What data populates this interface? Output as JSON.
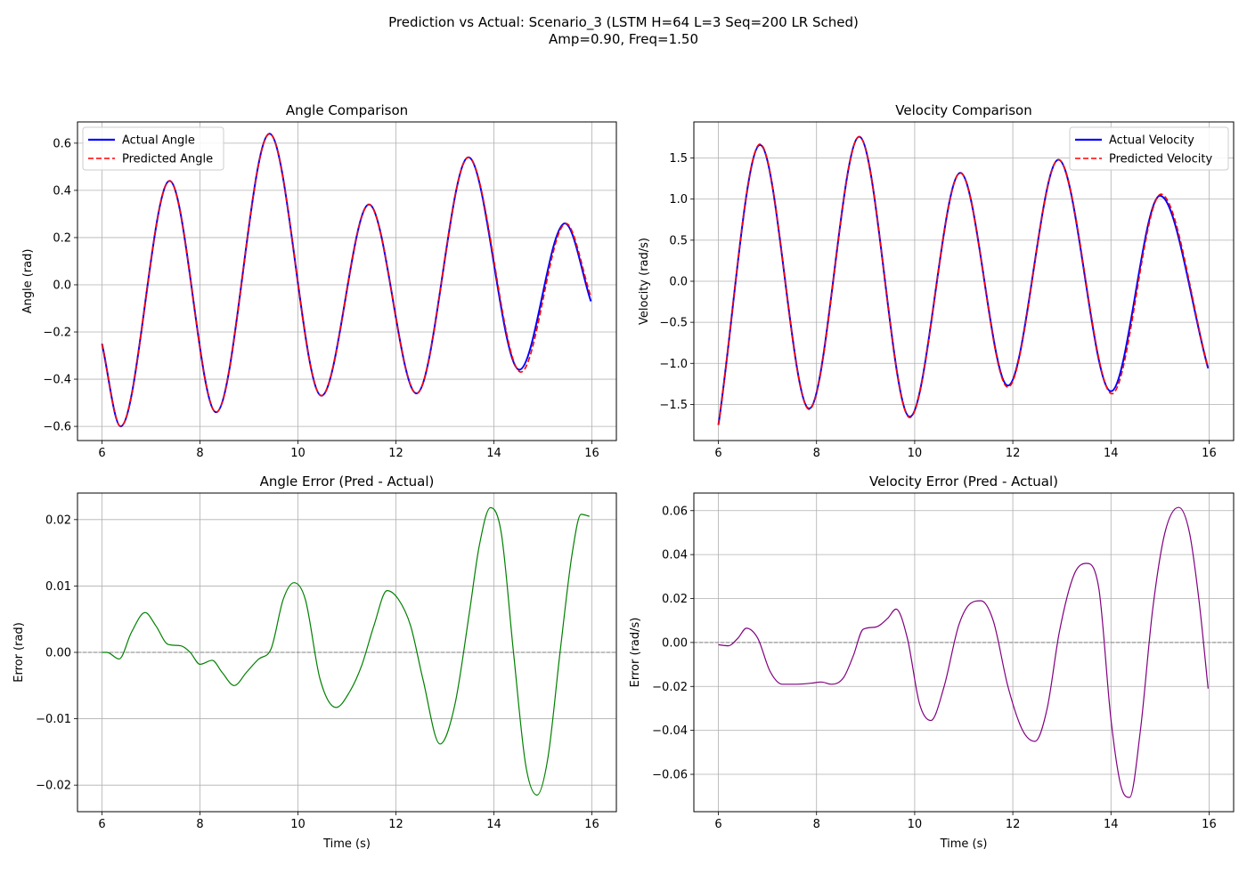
{
  "figure": {
    "suptitle_line1": "Prediction vs Actual: Scenario_3 (LSTM H=64 L=3 Seq=200 LR Sched)",
    "suptitle_line2": "Amp=0.90, Freq=1.50"
  },
  "chart_data": [
    {
      "id": "angle",
      "type": "line",
      "title": "Angle Comparison",
      "xlabel": "",
      "ylabel": "Angle (rad)",
      "xlim": [
        5.5,
        16.5
      ],
      "ylim": [
        -0.66,
        0.69
      ],
      "xticks": [
        6,
        8,
        10,
        12,
        14,
        16
      ],
      "yticks": [
        -0.6,
        -0.4,
        -0.2,
        0.0,
        0.2,
        0.4,
        0.6
      ],
      "ytick_labels": [
        "−0.6",
        "−0.4",
        "−0.2",
        "0.0",
        "0.2",
        "0.4",
        "0.6"
      ],
      "grid": true,
      "legend": "upper-left",
      "series": [
        {
          "name": "Actual Angle",
          "color": "#0000ff",
          "style": "solid",
          "x": [
            6.0,
            6.38,
            7.38,
            8.33,
            9.42,
            10.48,
            11.45,
            12.42,
            13.48,
            14.52,
            15.45,
            15.98
          ],
          "y": [
            -0.25,
            -0.6,
            0.44,
            -0.54,
            0.64,
            -0.47,
            0.34,
            -0.46,
            0.54,
            -0.36,
            0.26,
            -0.07
          ]
        },
        {
          "name": "Predicted Angle",
          "color": "#ff0000",
          "style": "dashed",
          "x": [
            6.0,
            6.38,
            7.38,
            8.33,
            9.42,
            10.48,
            11.45,
            12.42,
            13.48,
            14.55,
            15.47,
            15.98
          ],
          "y": [
            -0.25,
            -0.6,
            0.44,
            -0.54,
            0.64,
            -0.47,
            0.34,
            -0.46,
            0.54,
            -0.37,
            0.26,
            -0.05
          ]
        }
      ]
    },
    {
      "id": "velocity",
      "type": "line",
      "title": "Velocity Comparison",
      "xlabel": "",
      "ylabel": "Velocity (rad/s)",
      "xlim": [
        5.5,
        16.5
      ],
      "ylim": [
        -1.94,
        1.94
      ],
      "xticks": [
        6,
        8,
        10,
        12,
        14,
        16
      ],
      "yticks": [
        -1.5,
        -1.0,
        -0.5,
        0.0,
        0.5,
        1.0,
        1.5
      ],
      "ytick_labels": [
        "−1.5",
        "−1.0",
        "−0.5",
        "0.0",
        "0.5",
        "1.0",
        "1.5"
      ],
      "grid": true,
      "legend": "upper-right",
      "series": [
        {
          "name": "Actual Velocity",
          "color": "#0000ff",
          "style": "solid",
          "x": [
            6.0,
            6.85,
            7.85,
            8.87,
            9.9,
            10.93,
            11.9,
            12.93,
            14.0,
            15.0,
            15.98
          ],
          "y": [
            -1.75,
            1.66,
            -1.55,
            1.76,
            -1.65,
            1.32,
            -1.27,
            1.48,
            -1.34,
            1.04,
            -1.06
          ]
        },
        {
          "name": "Predicted Velocity",
          "color": "#ff0000",
          "style": "dashed",
          "x": [
            6.0,
            6.85,
            7.85,
            8.87,
            9.9,
            10.93,
            11.9,
            12.93,
            14.02,
            15.02,
            15.98
          ],
          "y": [
            -1.75,
            1.67,
            -1.56,
            1.76,
            -1.66,
            1.32,
            -1.29,
            1.48,
            -1.37,
            1.06,
            -1.05
          ]
        }
      ]
    },
    {
      "id": "angle-error",
      "type": "line",
      "title": "Angle Error (Pred - Actual)",
      "xlabel": "Time (s)",
      "ylabel": "Error (rad)",
      "xlim": [
        5.5,
        16.5
      ],
      "ylim": [
        -0.024,
        0.024
      ],
      "xticks": [
        6,
        8,
        10,
        12,
        14,
        16
      ],
      "yticks": [
        -0.02,
        -0.01,
        0.0,
        0.01,
        0.02
      ],
      "ytick_labels": [
        "−0.02",
        "−0.01",
        "0.00",
        "0.01",
        "0.02"
      ],
      "grid": true,
      "zero_line": true,
      "legend": "none",
      "series": [
        {
          "name": "",
          "color": "#008000",
          "style": "solid",
          "x": [
            6.0,
            6.1,
            6.35,
            6.6,
            6.88,
            7.1,
            7.35,
            7.6,
            7.8,
            8.0,
            8.25,
            8.45,
            8.7,
            8.95,
            9.2,
            9.45,
            9.7,
            9.92,
            10.15,
            10.45,
            10.78,
            11.05,
            11.3,
            11.55,
            11.82,
            12.05,
            12.3,
            12.55,
            12.9,
            13.2,
            13.5,
            13.7,
            13.93,
            14.15,
            14.4,
            14.65,
            14.88,
            15.1,
            15.35,
            15.6,
            15.78,
            15.95
          ],
          "y": [
            0.0,
            0.0,
            -0.001,
            0.003,
            0.006,
            0.004,
            0.0012,
            0.001,
            0.0,
            -0.0018,
            -0.0012,
            -0.003,
            -0.005,
            -0.003,
            -0.001,
            0.0005,
            0.008,
            0.0105,
            0.008,
            -0.004,
            -0.0083,
            -0.006,
            -0.002,
            0.004,
            0.0093,
            0.008,
            0.004,
            -0.004,
            -0.0138,
            -0.008,
            0.006,
            0.016,
            0.0218,
            0.018,
            0.0,
            -0.017,
            -0.0215,
            -0.016,
            0.0,
            0.015,
            0.0208,
            0.0205
          ]
        }
      ]
    },
    {
      "id": "velocity-error",
      "type": "line",
      "title": "Velocity Error (Pred - Actual)",
      "xlabel": "Time (s)",
      "ylabel": "Error (rad/s)",
      "xlim": [
        5.5,
        16.5
      ],
      "ylim": [
        -0.077,
        0.068
      ],
      "xticks": [
        6,
        8,
        10,
        12,
        14,
        16
      ],
      "yticks": [
        -0.06,
        -0.04,
        -0.02,
        0.0,
        0.02,
        0.04,
        0.06
      ],
      "ytick_labels": [
        "−0.06",
        "−0.04",
        "−0.02",
        "0.00",
        "0.02",
        "0.04",
        "0.06"
      ],
      "grid": true,
      "zero_line": true,
      "legend": "none",
      "series": [
        {
          "name": "",
          "color": "#800080",
          "style": "solid",
          "x": [
            6.0,
            6.2,
            6.4,
            6.57,
            6.8,
            7.05,
            7.3,
            7.6,
            7.9,
            8.1,
            8.3,
            8.55,
            8.75,
            8.95,
            9.2,
            9.45,
            9.62,
            9.85,
            10.1,
            10.33,
            10.6,
            10.9,
            11.15,
            11.35,
            11.6,
            11.9,
            12.2,
            12.45,
            12.7,
            12.95,
            13.25,
            13.5,
            13.75,
            14.0,
            14.2,
            14.38,
            14.6,
            14.85,
            15.1,
            15.38,
            15.6,
            15.8,
            15.98
          ],
          "y": [
            -0.001,
            -0.0015,
            0.002,
            0.0065,
            0.002,
            -0.013,
            -0.019,
            -0.019,
            -0.0185,
            -0.018,
            -0.019,
            -0.016,
            -0.006,
            0.006,
            0.007,
            0.011,
            0.0152,
            0.002,
            -0.028,
            -0.0355,
            -0.02,
            0.008,
            0.018,
            0.019,
            0.01,
            -0.02,
            -0.04,
            -0.045,
            -0.03,
            0.005,
            0.031,
            0.036,
            0.025,
            -0.035,
            -0.065,
            -0.0705,
            -0.04,
            0.015,
            0.05,
            0.0615,
            0.05,
            0.018,
            -0.021
          ]
        }
      ]
    }
  ]
}
